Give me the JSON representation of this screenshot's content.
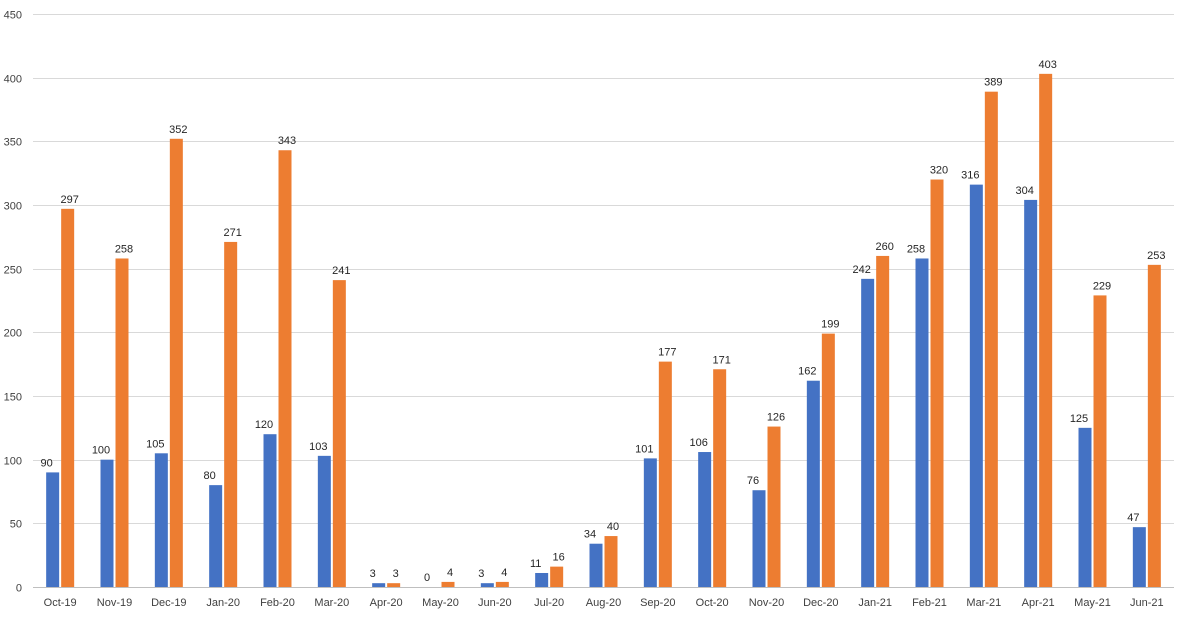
{
  "chart_data": {
    "type": "bar",
    "title": "",
    "xlabel": "",
    "ylabel": "",
    "ylim": [
      0,
      450
    ],
    "yticks": [
      0,
      50,
      100,
      150,
      200,
      250,
      300,
      350,
      400,
      450
    ],
    "grid": true,
    "legend": "none",
    "categories": [
      "Oct-19",
      "Nov-19",
      "Dec-19",
      "Jan-20",
      "Feb-20",
      "Mar-20",
      "Apr-20",
      "May-20",
      "Jun-20",
      "Jul-20",
      "Aug-20",
      "Sep-20",
      "Oct-20",
      "Nov-20",
      "Dec-20",
      "Jan-21",
      "Feb-21",
      "Mar-21",
      "Apr-21",
      "May-21",
      "Jun-21"
    ],
    "series": [
      {
        "color": "#4472C4",
        "values": [
          90,
          100,
          105,
          80,
          120,
          103,
          3,
          0,
          3,
          11,
          34,
          101,
          106,
          76,
          162,
          242,
          258,
          316,
          304,
          125,
          47
        ]
      },
      {
        "color": "#ED7D31",
        "values": [
          297,
          258,
          352,
          271,
          343,
          241,
          3,
          4,
          4,
          16,
          40,
          177,
          171,
          126,
          199,
          260,
          320,
          389,
          403,
          229,
          253
        ]
      }
    ]
  }
}
